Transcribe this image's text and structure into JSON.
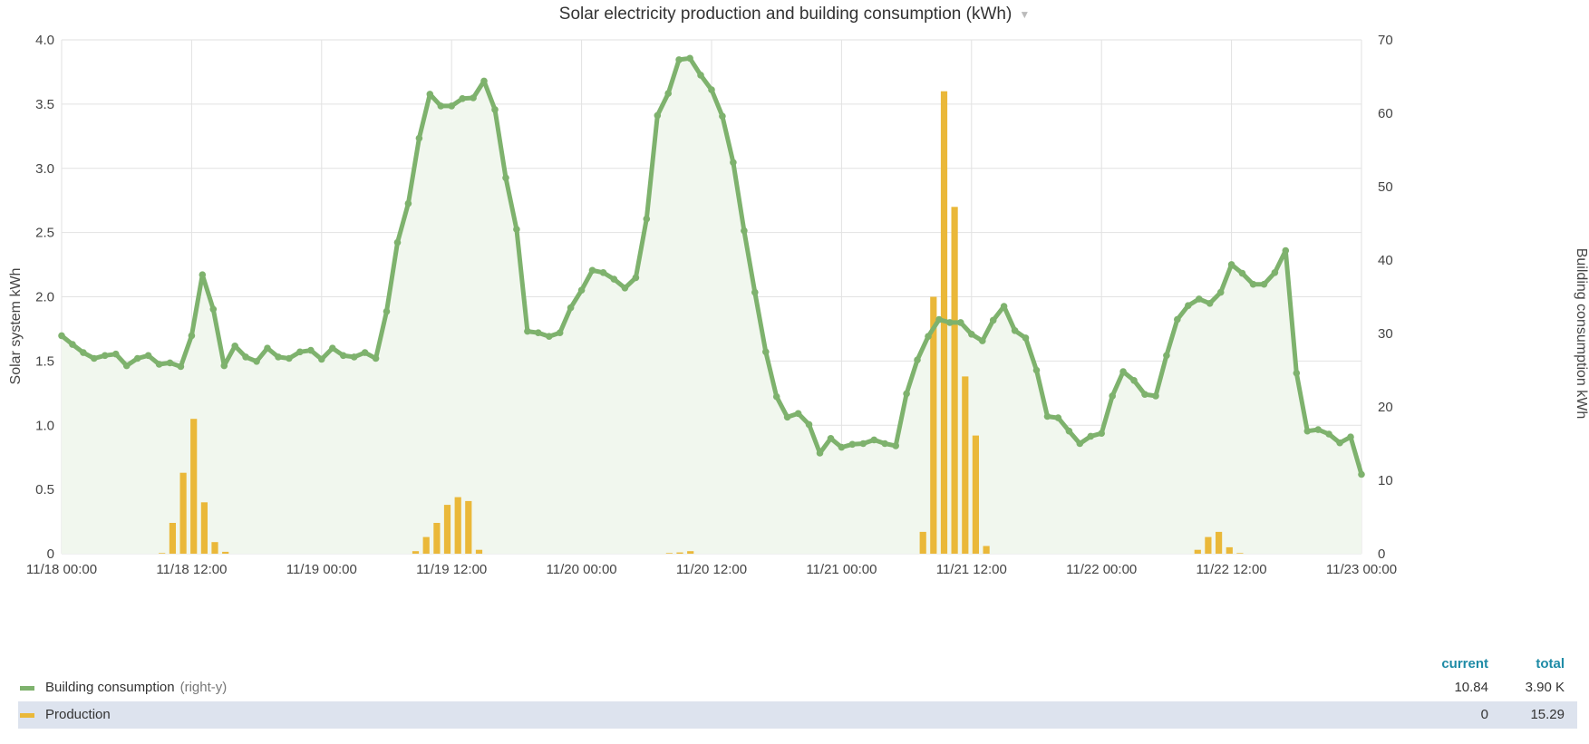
{
  "title": "Solar electricity production and building consumption (kWh)",
  "chart_data": {
    "type": "bar",
    "title": "Solar electricity production and building consumption (kWh)",
    "ylabel_left": "Solar system kWh",
    "ylabel_right": "Building consumption kWh",
    "ylim_left": [
      0,
      4
    ],
    "ylim_right": [
      0,
      70
    ],
    "yticks_left": [
      "0",
      "0.5",
      "1.0",
      "1.5",
      "2.0",
      "2.5",
      "3.0",
      "3.5",
      "4.0"
    ],
    "yticks_right": [
      "0",
      "10",
      "20",
      "30",
      "40",
      "50",
      "60",
      "70"
    ],
    "xticks": [
      "11/18 00:00",
      "11/18 12:00",
      "11/19 00:00",
      "11/19 12:00",
      "11/20 00:00",
      "11/20 12:00",
      "11/21 00:00",
      "11/21 12:00",
      "11/22 00:00",
      "11/22 12:00",
      "11/23 00:00"
    ],
    "x_unit_hours": 1,
    "x_range_hours": [
      0,
      120
    ],
    "grid": true,
    "colors": {
      "consumption": "#7eb26d",
      "production": "#eab839",
      "fill": "#f1f7ee",
      "grid": "#e2e2e2"
    },
    "series": [
      {
        "name": "Building consumption",
        "type": "line",
        "axis": "right",
        "values": [
          29.7,
          28.5,
          27.4,
          26.6,
          27.0,
          27.2,
          25.6,
          26.6,
          27.0,
          25.8,
          26.0,
          25.5,
          29.7,
          38.0,
          33.3,
          25.6,
          28.3,
          26.8,
          26.2,
          28.0,
          26.8,
          26.6,
          27.5,
          27.7,
          26.5,
          28.0,
          27.0,
          26.8,
          27.4,
          26.6,
          33.0,
          42.4,
          47.7,
          56.6,
          62.6,
          61.0,
          61.0,
          62.0,
          62.1,
          64.4,
          60.5,
          51.2,
          44.2,
          30.3,
          30.1,
          29.6,
          30.1,
          33.5,
          35.9,
          38.6,
          38.3,
          37.4,
          36.2,
          37.6,
          45.6,
          59.7,
          62.7,
          67.3,
          67.5,
          65.2,
          63.2,
          59.6,
          53.3,
          44.0,
          35.6,
          27.5,
          21.4,
          18.6,
          19.1,
          17.6,
          13.7,
          15.7,
          14.5,
          14.9,
          15.0,
          15.5,
          15.0,
          14.7,
          21.8,
          26.4,
          29.6,
          31.9,
          31.5,
          31.5,
          29.9,
          29.0,
          31.8,
          33.7,
          30.4,
          29.4,
          25.0,
          18.7,
          18.5,
          16.7,
          15.0,
          16.0,
          16.4,
          21.5,
          24.8,
          23.6,
          21.7,
          21.5,
          27.0,
          31.9,
          33.8,
          34.7,
          34.1,
          35.6,
          39.4,
          38.2,
          36.7,
          36.7,
          38.3,
          41.3,
          24.6,
          16.7,
          16.9,
          16.3,
          15.1,
          15.9,
          10.8
        ]
      },
      {
        "name": "Production",
        "type": "bar",
        "axis": "left",
        "values": [
          0,
          0,
          0,
          0,
          0,
          0,
          0,
          0,
          0,
          0.005,
          0.24,
          0.63,
          1.05,
          0.4,
          0.09,
          0.015,
          0,
          0,
          0,
          0,
          0,
          0,
          0,
          0,
          0,
          0,
          0,
          0,
          0,
          0,
          0,
          0,
          0,
          0.02,
          0.13,
          0.24,
          0.38,
          0.44,
          0.41,
          0.03,
          0,
          0,
          0,
          0,
          0,
          0,
          0,
          0,
          0,
          0,
          0,
          0,
          0,
          0,
          0,
          0,
          0,
          0.005,
          0.01,
          0.02,
          0,
          0,
          0,
          0,
          0,
          0,
          0,
          0,
          0,
          0,
          0,
          0,
          0,
          0,
          0,
          0,
          0,
          0,
          0,
          0,
          0,
          0.17,
          2.0,
          3.6,
          2.7,
          1.38,
          0.92,
          0.06,
          0,
          0,
          0,
          0,
          0,
          0,
          0,
          0,
          0,
          0,
          0,
          0,
          0,
          0,
          0,
          0,
          0,
          0,
          0,
          0.03,
          0.13,
          0.17,
          0.05,
          0.005,
          0,
          0,
          0,
          0,
          0,
          0,
          0,
          0,
          0,
          0,
          0
        ]
      }
    ]
  },
  "legend": {
    "col_current": "current",
    "col_total": "total",
    "rows": [
      {
        "name": "Building consumption",
        "axis_note": "(right-y)",
        "current": "10.84",
        "total": "3.90 K",
        "color": "#7eb26d"
      },
      {
        "name": "Production",
        "axis_note": "",
        "current": "0",
        "total": "15.29",
        "color": "#eab839"
      }
    ]
  }
}
